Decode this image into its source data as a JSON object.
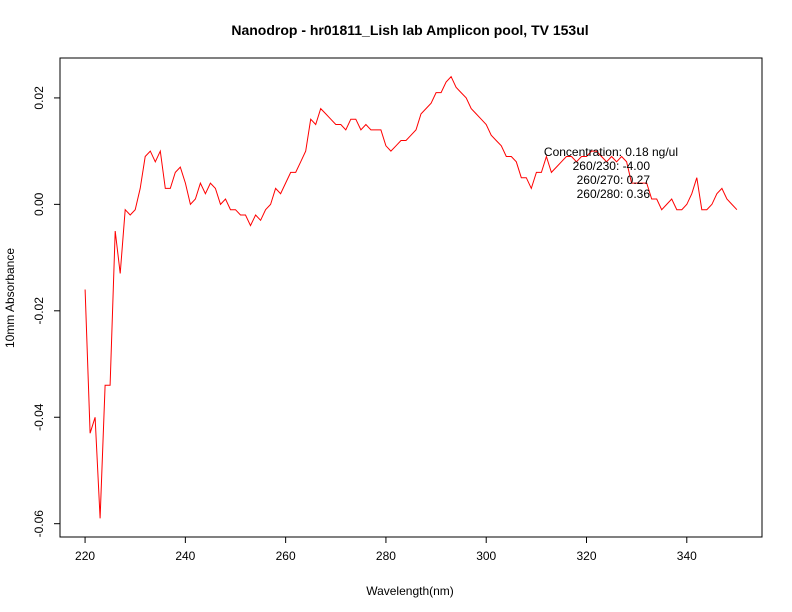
{
  "chart_data": {
    "type": "line",
    "title": "Nanodrop - hr01811_Lish lab Amplicon pool, TV 153ul",
    "xlabel": "Wavelength(nm)",
    "ylabel": "10mm Absorbance",
    "xlim": [
      215,
      355
    ],
    "ylim": [
      -0.0625,
      0.0275
    ],
    "xticks": [
      220,
      240,
      260,
      280,
      300,
      320,
      340
    ],
    "yticks": [
      -0.06,
      -0.04,
      -0.02,
      0.0,
      0.02
    ],
    "xtick_labels": [
      "220",
      "240",
      "260",
      "280",
      "300",
      "320",
      "340"
    ],
    "ytick_labels": [
      "-0.06",
      "-0.04",
      "-0.02",
      "0.00",
      "0.02"
    ],
    "grid": false,
    "series": [
      {
        "color": "#ff0000",
        "x": [
          220,
          221,
          222,
          223,
          224,
          225,
          226,
          227,
          228,
          229,
          230,
          231,
          232,
          233,
          234,
          235,
          236,
          237,
          238,
          239,
          240,
          241,
          242,
          243,
          244,
          245,
          246,
          247,
          248,
          249,
          250,
          251,
          252,
          253,
          254,
          255,
          256,
          257,
          258,
          259,
          260,
          261,
          262,
          263,
          264,
          265,
          266,
          267,
          268,
          269,
          270,
          271,
          272,
          273,
          274,
          275,
          276,
          277,
          278,
          279,
          280,
          281,
          282,
          283,
          284,
          285,
          286,
          287,
          288,
          289,
          290,
          291,
          292,
          293,
          294,
          295,
          296,
          297,
          298,
          299,
          300,
          301,
          302,
          303,
          304,
          305,
          306,
          307,
          308,
          309,
          310,
          311,
          312,
          313,
          314,
          315,
          316,
          317,
          318,
          319,
          320,
          321,
          322,
          323,
          324,
          325,
          326,
          327,
          328,
          329,
          330,
          331,
          332,
          333,
          334,
          335,
          336,
          337,
          338,
          339,
          340,
          341,
          342,
          343,
          344,
          345,
          346,
          347,
          348,
          349,
          350
        ],
        "y": [
          -0.016,
          -0.043,
          -0.04,
          -0.059,
          -0.034,
          -0.034,
          -0.005,
          -0.013,
          -0.001,
          -0.002,
          -0.001,
          0.003,
          0.009,
          0.01,
          0.008,
          0.01,
          0.003,
          0.003,
          0.006,
          0.007,
          0.004,
          0.0,
          0.001,
          0.004,
          0.002,
          0.004,
          0.003,
          0.0,
          0.001,
          -0.001,
          -0.001,
          -0.002,
          -0.002,
          -0.004,
          -0.002,
          -0.003,
          -0.001,
          0.0,
          0.003,
          0.002,
          0.004,
          0.006,
          0.006,
          0.008,
          0.01,
          0.016,
          0.015,
          0.018,
          0.017,
          0.016,
          0.015,
          0.015,
          0.014,
          0.016,
          0.016,
          0.014,
          0.015,
          0.014,
          0.014,
          0.014,
          0.011,
          0.01,
          0.011,
          0.012,
          0.012,
          0.013,
          0.014,
          0.017,
          0.018,
          0.019,
          0.021,
          0.021,
          0.023,
          0.024,
          0.022,
          0.021,
          0.02,
          0.018,
          0.017,
          0.016,
          0.015,
          0.013,
          0.012,
          0.011,
          0.009,
          0.009,
          0.008,
          0.005,
          0.005,
          0.003,
          0.006,
          0.006,
          0.009,
          0.006,
          0.007,
          0.008,
          0.009,
          0.009,
          0.008,
          0.009,
          0.009,
          0.01,
          0.01,
          0.009,
          0.008,
          0.009,
          0.008,
          0.009,
          0.008,
          0.004,
          0.004,
          0.004,
          0.004,
          0.001,
          0.001,
          -0.001,
          0.0,
          0.001,
          -0.001,
          -0.001,
          0.0,
          0.002,
          0.005,
          -0.001,
          -0.001,
          0.0,
          0.002,
          0.003,
          0.001,
          0.0,
          -0.001
        ]
      }
    ],
    "annotations": [
      "Concentration: 0.18 ng/ul",
      "260/230: -4.00",
      "260/270: 0.27",
      "260/280: 0.36"
    ]
  }
}
